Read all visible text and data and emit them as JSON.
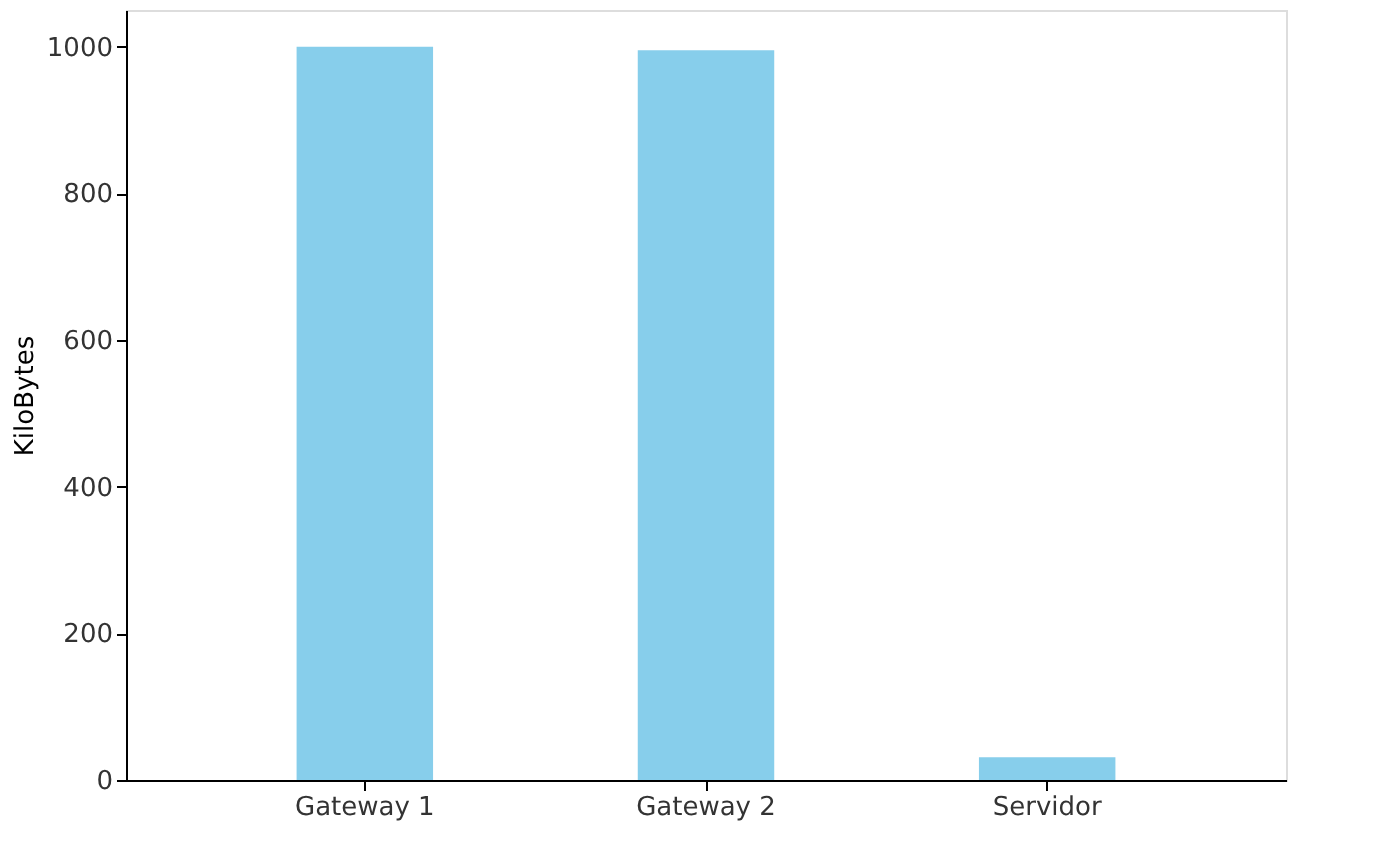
{
  "chart_data": {
    "type": "bar",
    "ylabel": "KiloBytes",
    "categories": [
      "Gateway 1",
      "Gateway 2",
      "Servidor"
    ],
    "values": [
      1000,
      995,
      31
    ],
    "color": "#87ceeb",
    "ylim": [
      0,
      1050
    ],
    "yticks": [
      0,
      200,
      400,
      600,
      800,
      1000
    ],
    "grid": false
  }
}
